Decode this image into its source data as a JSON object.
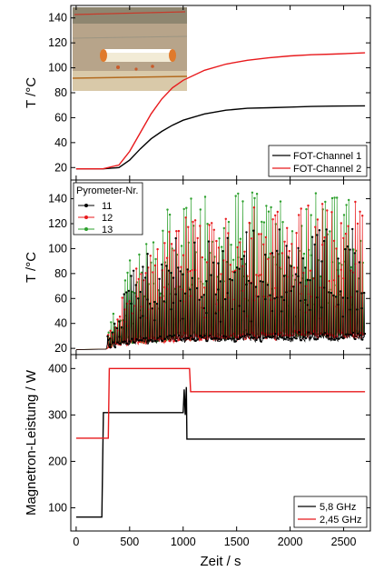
{
  "chart_data": [
    {
      "type": "line",
      "ylabel": "T /°C",
      "xlim": [
        -50,
        2750
      ],
      "ylim": [
        10,
        150
      ],
      "yticks": [
        20,
        40,
        60,
        80,
        100,
        120,
        140
      ],
      "legend_position": "bottom-right",
      "inset_photo": true,
      "series": [
        {
          "name": "FOT-Channel 1",
          "color": "#000000",
          "x": [
            0,
            250,
            400,
            500,
            600,
            700,
            800,
            900,
            1000,
            1200,
            1400,
            1600,
            1800,
            2000,
            2200,
            2400,
            2700
          ],
          "y": [
            19,
            19,
            20,
            26,
            35,
            43,
            49,
            54,
            58,
            63,
            66,
            67.5,
            68,
            68.5,
            69,
            69.3,
            69.5
          ]
        },
        {
          "name": "FOT-Channel 2",
          "color": "#e8191c",
          "x": [
            0,
            250,
            400,
            500,
            600,
            700,
            800,
            900,
            1000,
            1200,
            1400,
            1600,
            1800,
            2000,
            2200,
            2400,
            2700
          ],
          "y": [
            19,
            19,
            22,
            33,
            48,
            63,
            75,
            84,
            90,
            98,
            103,
            106,
            108,
            109.5,
            110.5,
            111,
            112
          ]
        }
      ]
    },
    {
      "type": "line",
      "ylabel": "T /°C",
      "xlim": [
        -50,
        2750
      ],
      "ylim": [
        15,
        155
      ],
      "yticks": [
        20,
        40,
        60,
        80,
        100,
        120,
        140
      ],
      "legend_title": "Pyrometer-Nr.",
      "legend_position": "top-left",
      "series": [
        {
          "name": "11",
          "color": "#000000",
          "baseline": [
            [
              0,
              19
            ],
            [
              250,
              19
            ],
            [
              500,
              22
            ],
            [
              1000,
              24
            ],
            [
              2700,
              26
            ]
          ],
          "peak_envelope": [
            [
              300,
              30
            ],
            [
              500,
              80
            ],
            [
              800,
              110
            ],
            [
              1200,
              115
            ],
            [
              2700,
              120
            ]
          ]
        },
        {
          "name": "12",
          "color": "#e8191c",
          "baseline": [
            [
              0,
              19
            ],
            [
              250,
              19
            ],
            [
              500,
              22
            ],
            [
              1000,
              25
            ],
            [
              2700,
              28
            ]
          ],
          "peak_envelope": [
            [
              300,
              32
            ],
            [
              500,
              85
            ],
            [
              800,
              120
            ],
            [
              1200,
              135
            ],
            [
              2700,
              140
            ]
          ]
        },
        {
          "name": "13",
          "color": "#2ca02c",
          "baseline": [
            [
              0,
              19
            ],
            [
              250,
              19
            ],
            [
              500,
              23
            ],
            [
              1000,
              26
            ],
            [
              2700,
              29
            ]
          ],
          "peak_envelope": [
            [
              300,
              35
            ],
            [
              500,
              95
            ],
            [
              800,
              130
            ],
            [
              1200,
              145
            ],
            [
              2700,
              150
            ]
          ]
        }
      ]
    },
    {
      "type": "line",
      "ylabel": "Magnetron-Leistung / W",
      "xlabel": "Zeit / s",
      "xlim": [
        -50,
        2750
      ],
      "ylim": [
        50,
        430
      ],
      "yticks": [
        100,
        200,
        300,
        400
      ],
      "xticks": [
        0,
        500,
        1000,
        1500,
        2000,
        2500
      ],
      "legend_position": "bottom-right",
      "series": [
        {
          "name": "5,8 GHz",
          "color": "#000000",
          "x": [
            0,
            240,
            255,
            1000,
            1010,
            1020,
            1030,
            1035,
            2700
          ],
          "y": [
            80,
            80,
            305,
            305,
            355,
            300,
            360,
            248,
            248
          ]
        },
        {
          "name": "2,45 GHz",
          "color": "#e8191c",
          "x": [
            0,
            300,
            310,
            1060,
            1070,
            2700
          ],
          "y": [
            250,
            250,
            400,
            400,
            350,
            350
          ]
        }
      ]
    }
  ]
}
